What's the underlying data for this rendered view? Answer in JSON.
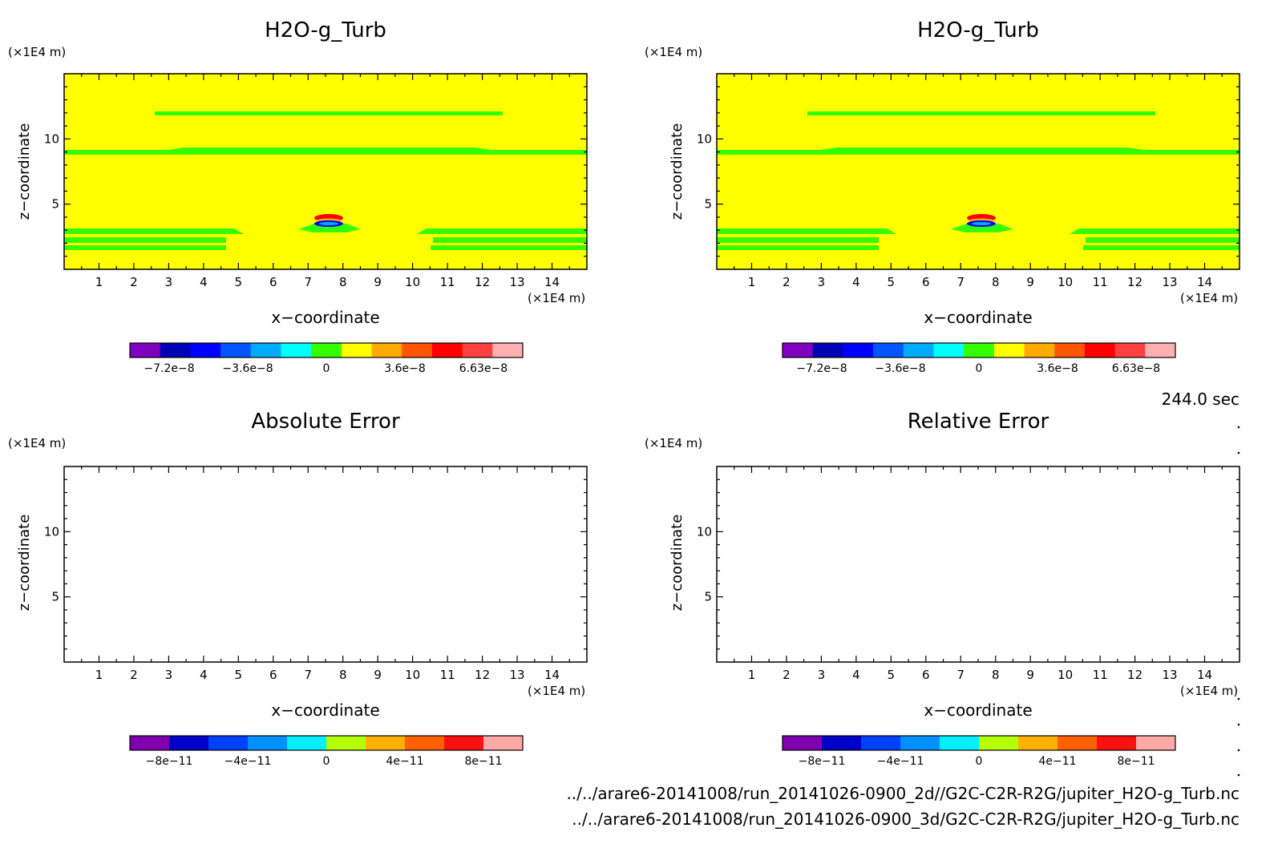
{
  "panels": [
    {
      "title": "H2O-g_Turb",
      "y_unit": "(×1E4 m)",
      "x_unit": "(×1E4 m)",
      "ylabel": "z−coordinate",
      "xlabel": "x−coordinate",
      "xticks": [
        "1",
        "2",
        "3",
        "4",
        "5",
        "6",
        "7",
        "8",
        "9",
        "10",
        "11",
        "12",
        "13",
        "14"
      ],
      "yticks": [
        "5",
        "10"
      ],
      "colorbar": {
        "colors": [
          "#7f00bf",
          "#0000b4",
          "#0000ff",
          "#0055ff",
          "#00aaff",
          "#00ffff",
          "#33ff00",
          "#ffff00",
          "#ffaa00",
          "#ff5500",
          "#ff0000",
          "#ff4040",
          "#ffb0b0"
        ],
        "labels": [
          "−7.2e−8",
          "−3.6e−8",
          "0",
          "3.6e−8",
          "6.63e−8"
        ]
      },
      "field": "filled"
    },
    {
      "title": "H2O-g_Turb",
      "y_unit": "(×1E4 m)",
      "x_unit": "(×1E4 m)",
      "ylabel": "z−coordinate",
      "xlabel": "x−coordinate",
      "xticks": [
        "1",
        "2",
        "3",
        "4",
        "5",
        "6",
        "7",
        "8",
        "9",
        "10",
        "11",
        "12",
        "13",
        "14"
      ],
      "yticks": [
        "5",
        "10"
      ],
      "colorbar": {
        "colors": [
          "#7f00bf",
          "#0000b4",
          "#0000ff",
          "#0055ff",
          "#00aaff",
          "#00ffff",
          "#33ff00",
          "#ffff00",
          "#ffaa00",
          "#ff5500",
          "#ff0000",
          "#ff4040",
          "#ffb0b0"
        ],
        "labels": [
          "−7.2e−8",
          "−3.6e−8",
          "0",
          "3.6e−8",
          "6.63e−8"
        ]
      },
      "field": "filled"
    },
    {
      "title": "Absolute Error",
      "y_unit": "(×1E4 m)",
      "x_unit": "(×1E4 m)",
      "ylabel": "z−coordinate",
      "xlabel": "x−coordinate",
      "xticks": [
        "1",
        "2",
        "3",
        "4",
        "5",
        "6",
        "7",
        "8",
        "9",
        "10",
        "11",
        "12",
        "13",
        "14"
      ],
      "yticks": [
        "5",
        "10"
      ],
      "colorbar": {
        "colors": [
          "#8000b0",
          "#0000c8",
          "#0040ff",
          "#0090ff",
          "#00f0ff",
          "#b4ff00",
          "#ffb000",
          "#ff6000",
          "#ff1010",
          "#ffa8a8"
        ],
        "labels": [
          "−8e−11",
          "−4e−11",
          "0",
          "4e−11",
          "8e−11"
        ]
      },
      "field": "empty"
    },
    {
      "title": "Relative Error",
      "y_unit": "(×1E4 m)",
      "x_unit": "(×1E4 m)",
      "ylabel": "z−coordinate",
      "xlabel": "x−coordinate",
      "xticks": [
        "1",
        "2",
        "3",
        "4",
        "5",
        "6",
        "7",
        "8",
        "9",
        "10",
        "11",
        "12",
        "13",
        "14"
      ],
      "yticks": [
        "5",
        "10"
      ],
      "colorbar": {
        "colors": [
          "#8000b0",
          "#0000c8",
          "#0040ff",
          "#0090ff",
          "#00f0ff",
          "#b4ff00",
          "#ffb000",
          "#ff6000",
          "#ff1010",
          "#ffa8a8"
        ],
        "labels": [
          "−8e−11",
          "−4e−11",
          "0",
          "4e−11",
          "8e−11"
        ]
      },
      "field": "empty"
    }
  ],
  "time_label": "244.0 sec",
  "paths": [
    "../../arare6-20141008/run_20141026-0900_2d//G2C-C2R-R2G/jupiter_H2O-g_Turb.nc",
    "../../arare6-20141008/run_20141026-0900_3d/G2C-C2R-R2G/jupiter_H2O-g_Turb.nc"
  ],
  "chart_data": [
    {
      "type": "heatmap",
      "title": "H2O-g_Turb",
      "xlabel": "x−coordinate",
      "ylabel": "z−coordinate",
      "x_unit": "(×1E4 m)",
      "y_unit": "(×1E4 m)",
      "xlim": [
        0,
        15
      ],
      "ylim": [
        0,
        15
      ],
      "background_value": 0,
      "features": [
        {
          "kind": "band",
          "z": 11.9,
          "x": [
            2.6,
            12.6
          ],
          "level": "small negative"
        },
        {
          "kind": "band",
          "z": 9.1,
          "x": [
            0,
            15
          ],
          "level": "small negative"
        },
        {
          "kind": "band",
          "z": 3.0,
          "x": [
            0,
            5.0
          ],
          "level": "small negative"
        },
        {
          "kind": "band",
          "z": 3.0,
          "x": [
            10.0,
            15
          ],
          "level": "small negative"
        },
        {
          "kind": "band",
          "z": 2.3,
          "x": [
            0,
            4.6
          ],
          "level": "small negative"
        },
        {
          "kind": "band",
          "z": 2.3,
          "x": [
            10.5,
            15
          ],
          "level": "small negative"
        },
        {
          "kind": "band",
          "z": 1.7,
          "x": [
            0,
            4.0
          ],
          "level": "small negative"
        },
        {
          "kind": "band",
          "z": 1.7,
          "x": [
            10.5,
            15
          ],
          "level": "small negative"
        },
        {
          "kind": "dipole",
          "x": 7.5,
          "z": 3.7,
          "upper": "positive",
          "lower": "negative"
        }
      ],
      "color_range": [
        -7.2e-08,
        6.63e-08
      ]
    },
    {
      "type": "heatmap",
      "title": "H2O-g_Turb",
      "xlabel": "x−coordinate",
      "ylabel": "z−coordinate",
      "x_unit": "(×1E4 m)",
      "y_unit": "(×1E4 m)",
      "xlim": [
        0,
        15
      ],
      "ylim": [
        0,
        15
      ],
      "background_value": 0,
      "features": "identical to first panel",
      "color_range": [
        -7.2e-08,
        6.63e-08
      ]
    },
    {
      "type": "heatmap",
      "title": "Absolute Error",
      "xlabel": "x−coordinate",
      "ylabel": "z−coordinate",
      "xlim": [
        0,
        15
      ],
      "ylim": [
        0,
        15
      ],
      "color_range": [
        -1e-10,
        1e-10
      ],
      "values": []
    },
    {
      "type": "heatmap",
      "title": "Relative Error",
      "xlabel": "x−coordinate",
      "ylabel": "z−coordinate",
      "xlim": [
        0,
        15
      ],
      "ylim": [
        0,
        15
      ],
      "color_range": [
        -1e-10,
        1e-10
      ],
      "values": []
    }
  ]
}
